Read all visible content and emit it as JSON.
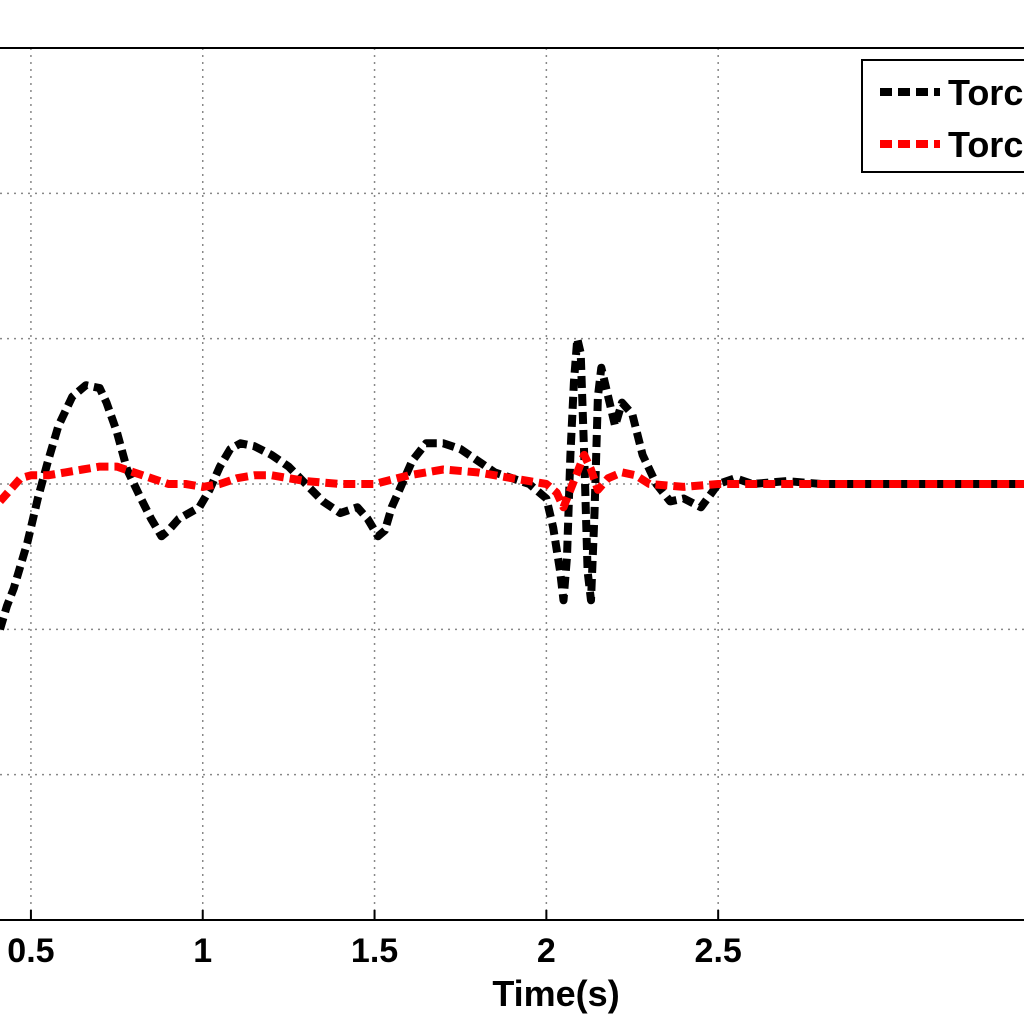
{
  "chart_data": {
    "type": "line",
    "title": "",
    "xlabel": "Time(s)",
    "ylabel": "",
    "xlim": [
      0.41,
      3.39
    ],
    "ylim": [
      -1.5,
      1.5
    ],
    "x_ticks": [
      0.5,
      1,
      1.5,
      2,
      2.5
    ],
    "x_tick_labels": [
      "0.5",
      "1",
      "1.5",
      "2",
      "2.5"
    ],
    "y_gridlines": [
      -1.5,
      -1.0,
      -0.5,
      0.0,
      0.5,
      1.0,
      1.5
    ],
    "grid": true,
    "grid_style": "dotted",
    "legend_position": "top-right",
    "legend_entries": [
      "Torc",
      "Torc"
    ],
    "series": [
      {
        "color": "#000000",
        "line_style": "dashed",
        "x": [
          0.41,
          0.43,
          0.45,
          0.47,
          0.49,
          0.52,
          0.55,
          0.58,
          0.62,
          0.66,
          0.7,
          0.72,
          0.75,
          0.78,
          0.82,
          0.85,
          0.88,
          0.9,
          0.93,
          0.96,
          0.99,
          1.02,
          1.05,
          1.08,
          1.11,
          1.15,
          1.2,
          1.25,
          1.3,
          1.35,
          1.4,
          1.45,
          1.48,
          1.51,
          1.53,
          1.55,
          1.58,
          1.61,
          1.65,
          1.7,
          1.75,
          1.8,
          1.85,
          1.9,
          1.95,
          2.0,
          2.02,
          2.04,
          2.05,
          2.06,
          2.07,
          2.08,
          2.09,
          2.1,
          2.11,
          2.12,
          2.13,
          2.14,
          2.15,
          2.16,
          2.18,
          2.2,
          2.22,
          2.25,
          2.28,
          2.32,
          2.36,
          2.4,
          2.45,
          2.5,
          2.55,
          2.6,
          2.7,
          2.8,
          2.9,
          3.0,
          3.1,
          3.2,
          3.39
        ],
        "y": [
          -0.5,
          -0.42,
          -0.36,
          -0.28,
          -0.2,
          -0.05,
          0.08,
          0.2,
          0.3,
          0.34,
          0.33,
          0.28,
          0.18,
          0.05,
          -0.05,
          -0.12,
          -0.18,
          -0.16,
          -0.12,
          -0.1,
          -0.08,
          -0.02,
          0.06,
          0.12,
          0.14,
          0.13,
          0.1,
          0.06,
          0.0,
          -0.06,
          -0.1,
          -0.08,
          -0.12,
          -0.18,
          -0.16,
          -0.08,
          0.0,
          0.08,
          0.14,
          0.14,
          0.12,
          0.08,
          0.04,
          0.02,
          0.0,
          -0.05,
          -0.15,
          -0.3,
          -0.4,
          -0.25,
          0.1,
          0.35,
          0.5,
          0.45,
          0.1,
          -0.3,
          -0.4,
          -0.1,
          0.3,
          0.4,
          0.3,
          0.2,
          0.28,
          0.24,
          0.1,
          0.0,
          -0.06,
          -0.05,
          -0.08,
          0.0,
          0.02,
          0.0,
          0.01,
          0.0,
          0.0,
          0.0,
          0.0,
          0.0,
          0.0
        ]
      },
      {
        "color": "#ff0000",
        "line_style": "dashed",
        "x": [
          0.41,
          0.44,
          0.47,
          0.5,
          0.55,
          0.6,
          0.65,
          0.7,
          0.75,
          0.8,
          0.85,
          0.9,
          0.95,
          1.0,
          1.05,
          1.1,
          1.15,
          1.2,
          1.3,
          1.4,
          1.5,
          1.6,
          1.7,
          1.8,
          1.9,
          2.0,
          2.03,
          2.05,
          2.07,
          2.09,
          2.11,
          2.13,
          2.15,
          2.18,
          2.22,
          2.26,
          2.3,
          2.4,
          2.5,
          2.6,
          2.7,
          2.8,
          2.9,
          3.0,
          3.1,
          3.39
        ],
        "y": [
          -0.06,
          -0.02,
          0.02,
          0.03,
          0.03,
          0.04,
          0.05,
          0.06,
          0.06,
          0.04,
          0.02,
          0.0,
          0.0,
          -0.01,
          0.0,
          0.02,
          0.03,
          0.03,
          0.01,
          0.0,
          0.0,
          0.03,
          0.05,
          0.04,
          0.02,
          0.0,
          -0.03,
          -0.08,
          -0.02,
          0.04,
          0.1,
          0.05,
          -0.02,
          0.02,
          0.04,
          0.03,
          0.0,
          -0.01,
          0.0,
          0.0,
          0.0,
          0.0,
          0.0,
          0.0,
          0.0,
          0.0
        ]
      }
    ]
  }
}
